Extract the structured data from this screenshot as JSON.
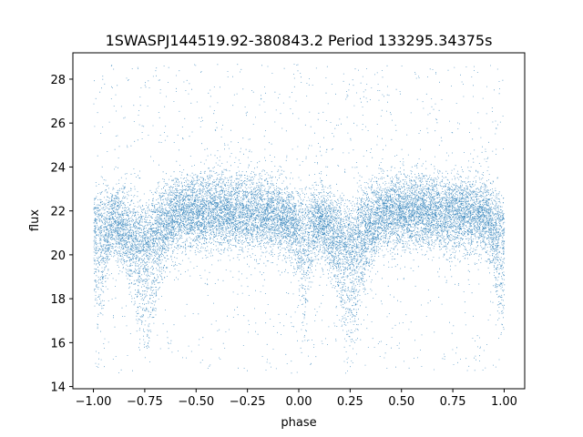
{
  "chart_data": {
    "type": "scatter",
    "title": "1SWASPJ144519.92-380843.2 Period 133295.34375s",
    "xlabel": "phase",
    "ylabel": "flux",
    "xlim": [
      -1.1,
      1.1
    ],
    "ylim": [
      13.9,
      29.2
    ],
    "x_ticks": [
      -1.0,
      -0.75,
      -0.5,
      -0.25,
      0.0,
      0.25,
      0.5,
      0.75,
      1.0
    ],
    "x_tick_labels": [
      "−1.00",
      "−0.75",
      "−0.50",
      "−0.25",
      "0.00",
      "0.25",
      "0.50",
      "0.75",
      "1.00"
    ],
    "y_ticks": [
      14,
      16,
      18,
      20,
      22,
      24,
      26,
      28
    ],
    "y_tick_labels": [
      "14",
      "16",
      "18",
      "20",
      "22",
      "24",
      "26",
      "28"
    ],
    "grid": false,
    "legend": "none",
    "marker_color": "#1f77b4",
    "series": [
      {
        "phase_range": [
          -1.0,
          1.0
        ],
        "approx_point_count": 60000,
        "baseline_flux": 21.8,
        "core_spread": [
          20.0,
          23.5
        ],
        "outlier_range": [
          14.6,
          28.7
        ],
        "dips": [
          {
            "phase": -0.75,
            "min_flux": 17.3
          },
          {
            "phase": 0.25,
            "min_flux": 17.3
          }
        ],
        "secondary_dips": [
          {
            "phase": -0.97,
            "min_flux": 17.5
          },
          {
            "phase": 0.03,
            "min_flux": 17.7
          },
          {
            "phase": 0.98,
            "min_flux": 17.5
          }
        ],
        "binned_median": {
          "phase": [
            -1.0,
            -0.9,
            -0.8,
            -0.75,
            -0.7,
            -0.6,
            -0.5,
            -0.4,
            -0.3,
            -0.2,
            -0.1,
            0.0,
            0.1,
            0.2,
            0.25,
            0.3,
            0.4,
            0.5,
            0.6,
            0.7,
            0.8,
            0.9,
            1.0
          ],
          "flux": [
            21.3,
            21.6,
            21.1,
            20.8,
            21.4,
            21.9,
            22.0,
            22.0,
            21.9,
            21.9,
            21.8,
            21.3,
            21.6,
            21.1,
            20.8,
            21.4,
            21.9,
            22.0,
            22.0,
            21.9,
            21.9,
            21.8,
            21.3
          ]
        }
      }
    ]
  }
}
